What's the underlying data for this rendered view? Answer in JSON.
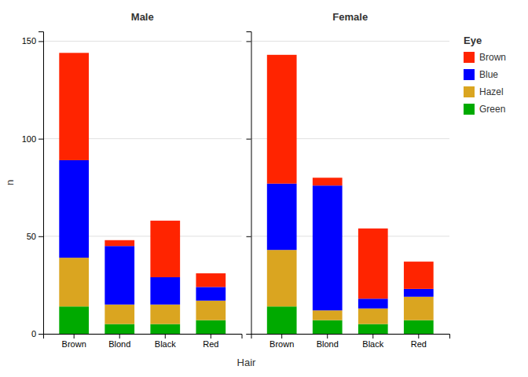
{
  "chart_data": [
    {
      "type": "bar",
      "title": "Male",
      "stacked": true,
      "grid": true,
      "xlabel": "Hair",
      "ylabel": "n",
      "categories": [
        "Brown",
        "Blond",
        "Black",
        "Red"
      ],
      "series": [
        {
          "name": "Brown",
          "color": "#FF2400",
          "values": [
            55,
            3,
            29,
            7
          ]
        },
        {
          "name": "Blue",
          "color": "#0000FF",
          "values": [
            50,
            30,
            14,
            7
          ]
        },
        {
          "name": "Hazel",
          "color": "#DAA520",
          "values": [
            25,
            10,
            10,
            10
          ]
        },
        {
          "name": "Green",
          "color": "#00AA00",
          "values": [
            14,
            5,
            5,
            7
          ]
        }
      ],
      "ylim": [
        0,
        155
      ],
      "yticks": [
        0,
        50,
        100,
        150
      ]
    },
    {
      "type": "bar",
      "title": "Female",
      "stacked": true,
      "grid": true,
      "tick_labels": "x",
      "legend": "right",
      "legend_title": "Eye",
      "categories": [
        "Brown",
        "Blond",
        "Black",
        "Red"
      ],
      "series": [
        {
          "name": "Brown",
          "color": "#FF2400",
          "values": [
            66,
            4,
            36,
            14
          ]
        },
        {
          "name": "Blue",
          "color": "#0000FF",
          "values": [
            34,
            64,
            5,
            4
          ]
        },
        {
          "name": "Hazel",
          "color": "#DAA520",
          "values": [
            29,
            5,
            8,
            12
          ]
        },
        {
          "name": "Green",
          "color": "#00AA00",
          "values": [
            14,
            7,
            5,
            7
          ]
        }
      ],
      "ylim": [
        0,
        155
      ],
      "yticks": [
        0,
        50,
        100,
        150
      ]
    }
  ]
}
